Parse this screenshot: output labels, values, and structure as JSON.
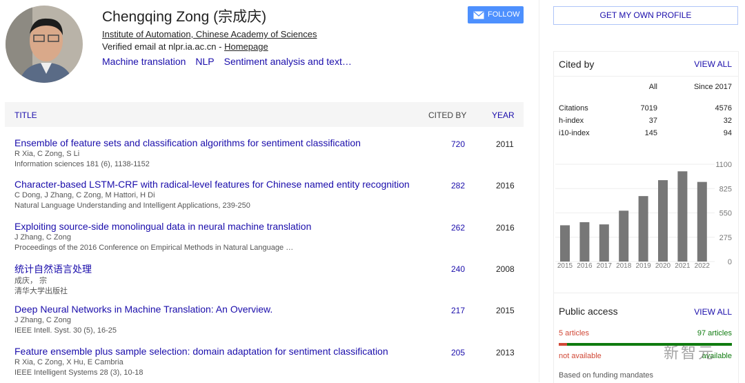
{
  "profile": {
    "name": "Chengqing Zong (宗成庆)",
    "affiliation": "Institute of Automation, Chinese Academy of Sciences",
    "email": "Verified email at nlpr.ia.ac.cn",
    "email_separator": "-",
    "homepage": "Homepage",
    "interests": [
      "Machine translation",
      "NLP",
      "Sentiment analysis and text…"
    ],
    "follow_button": "FOLLOW"
  },
  "table": {
    "headers": {
      "title": "TITLE",
      "cited_by": "CITED BY",
      "year": "YEAR"
    },
    "rows": [
      {
        "title": "Ensemble of feature sets and classification algorithms for sentiment classification",
        "authors": "R Xia, C Zong, S Li",
        "venue": "Information sciences 181 (6), 1138-1152",
        "cited_by": 720,
        "year": 2011
      },
      {
        "title": "Character-based LSTM-CRF with radical-level features for Chinese named entity recognition",
        "authors": "C Dong, J Zhang, C Zong, M Hattori, H Di",
        "venue": "Natural Language Understanding and Intelligent Applications, 239-250",
        "cited_by": 282,
        "year": 2016
      },
      {
        "title": "Exploiting source-side monolingual data in neural machine translation",
        "authors": "J Zhang, C Zong",
        "venue": "Proceedings of the 2016 Conference on Empirical Methods in Natural Language …",
        "cited_by": 262,
        "year": 2016
      },
      {
        "title": "统计自然语言处理",
        "authors": "成庆， 宗",
        "venue": "清华大学出版社",
        "cited_by": 240,
        "year": 2008
      },
      {
        "title": "Deep Neural Networks in Machine Translation: An Overview.",
        "authors": "J Zhang, C Zong",
        "venue": "IEEE Intell. Syst. 30 (5), 16-25",
        "cited_by": 217,
        "year": 2015
      },
      {
        "title": "Feature ensemble plus sample selection: domain adaptation for sentiment classification",
        "authors": "R Xia, C Zong, X Hu, E Cambria",
        "venue": "IEEE Intelligent Systems 28 (3), 10-18",
        "cited_by": 205,
        "year": 2013
      }
    ]
  },
  "sidebar": {
    "profile_button": "GET MY OWN PROFILE",
    "cited_by_title": "Cited by",
    "view_all": "VIEW ALL",
    "stats": {
      "columns": [
        "All",
        "Since 2017"
      ],
      "rows": [
        [
          "Citations",
          7019,
          4576
        ],
        [
          "h-index",
          37,
          32
        ],
        [
          "i10-index",
          145,
          94
        ]
      ]
    },
    "public_access": {
      "title": "Public access",
      "view_all": "VIEW ALL",
      "not_available": {
        "value": 5,
        "label": "5 articles"
      },
      "available": {
        "value": 97,
        "label": "97 articles"
      },
      "not_available_text": "not available",
      "available_text": "available",
      "footer": "Based on funding mandates"
    },
    "watermark": "新智元"
  },
  "chart_data": {
    "type": "bar",
    "categories": [
      "2015",
      "2016",
      "2017",
      "2018",
      "2019",
      "2020",
      "2021",
      "2022"
    ],
    "values": [
      410,
      445,
      420,
      575,
      740,
      920,
      1020,
      900
    ],
    "color": "#777777",
    "ylim": [
      0,
      1100
    ],
    "yticks": [
      0,
      275,
      550,
      825,
      1100
    ],
    "grid": true
  }
}
